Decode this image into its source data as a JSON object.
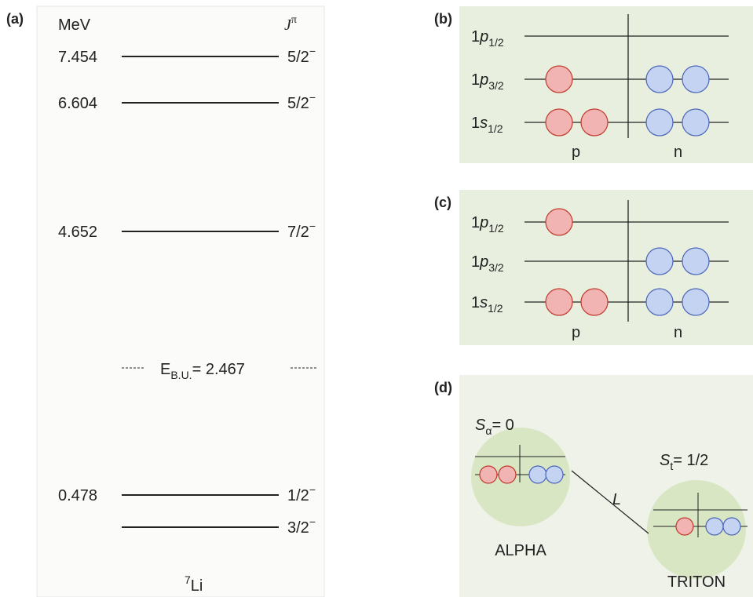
{
  "panel_a": {
    "label": "(a)",
    "unit": "MeV",
    "spin_header": {
      "symbol": "J",
      "superscript": "π"
    },
    "levels": [
      {
        "energy": "7.454",
        "spin": "5/2",
        "parity": "−"
      },
      {
        "energy": "6.604",
        "spin": "5/2",
        "parity": "−"
      },
      {
        "energy": "4.652",
        "spin": "7/2",
        "parity": "−"
      },
      {
        "energy": "0.478",
        "spin": "1/2",
        "parity": "−"
      },
      {
        "spin": "3/2",
        "parity": "−"
      }
    ],
    "breakup": {
      "symbol": "E",
      "subscript": "B.U.",
      "value": "= 2.467"
    },
    "nucleus": {
      "mass_number": "7",
      "symbol": "Li"
    }
  },
  "panel_b": {
    "label": "(b)",
    "orbitals": [
      {
        "number": "1",
        "letter": "p",
        "j": "1/2",
        "protons": 0,
        "neutrons": 0
      },
      {
        "number": "1",
        "letter": "p",
        "j": "3/2",
        "protons": 1,
        "neutrons": 2
      },
      {
        "number": "1",
        "letter": "s",
        "j": "1/2",
        "protons": 2,
        "neutrons": 2
      }
    ],
    "proton_label": "p",
    "neutron_label": "n"
  },
  "panel_c": {
    "label": "(c)",
    "orbitals": [
      {
        "number": "1",
        "letter": "p",
        "j": "1/2",
        "protons": 1,
        "neutrons": 0
      },
      {
        "number": "1",
        "letter": "p",
        "j": "3/2",
        "protons": 0,
        "neutrons": 2
      },
      {
        "number": "1",
        "letter": "s",
        "j": "1/2",
        "protons": 2,
        "neutrons": 2
      }
    ],
    "proton_label": "p",
    "neutron_label": "n"
  },
  "panel_d": {
    "label": "(d)",
    "alpha": {
      "symbol": "S",
      "subscript": "α",
      "value": "= 0",
      "name": "ALPHA"
    },
    "triton": {
      "symbol": "S",
      "subscript": "t",
      "value": "= 1/2",
      "name": "TRITON"
    },
    "relative": "L"
  }
}
